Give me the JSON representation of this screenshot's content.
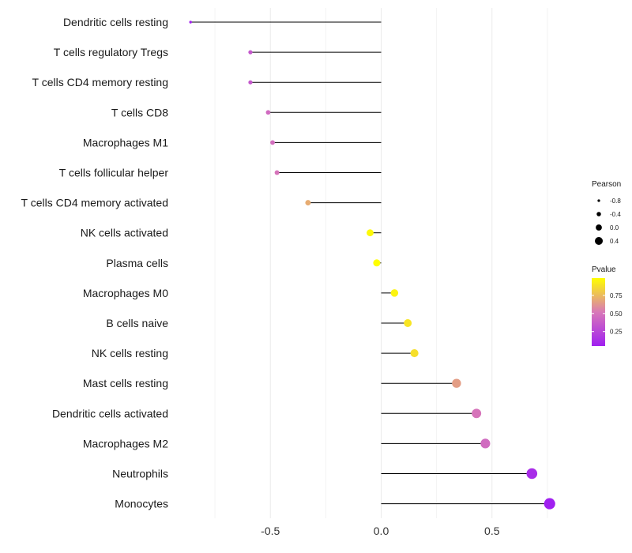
{
  "chart_data": {
    "type": "lollipop",
    "title": "",
    "xlabel": "",
    "ylabel": "",
    "xlim": [
      -0.9,
      0.9
    ],
    "x_ticks": [
      -0.5,
      0.0,
      0.5
    ],
    "x_tick_labels": [
      "-0.5",
      "0.0",
      "0.5"
    ],
    "grid": true,
    "baseline": 0,
    "categories": [
      "Dendritic cells resting",
      "T cells regulatory  Tregs",
      "T cells CD4 memory resting",
      "T cells CD8",
      "Macrophages M1",
      "T cells follicular helper",
      "T cells CD4 memory activated",
      "NK cells activated",
      "Plasma cells",
      "Macrophages M0",
      "B cells naive",
      "NK cells resting",
      "Mast cells resting",
      "Dendritic cells activated",
      "Macrophages M2",
      "Neutrophils",
      "Monocytes"
    ],
    "pearson": [
      -0.86,
      -0.59,
      -0.59,
      -0.51,
      -0.49,
      -0.47,
      -0.33,
      -0.05,
      -0.02,
      0.06,
      0.12,
      0.15,
      0.34,
      0.43,
      0.47,
      0.68,
      0.76
    ],
    "pvalue": [
      0.07,
      0.35,
      0.35,
      0.45,
      0.47,
      0.5,
      0.7,
      0.97,
      0.99,
      0.95,
      0.9,
      0.88,
      0.65,
      0.5,
      0.45,
      0.12,
      0.05
    ],
    "size_legend": {
      "title": "Pearson",
      "values": [
        -0.8,
        -0.4,
        0.0,
        0.4
      ],
      "labels": [
        "-0.8",
        "-0.4",
        "0.0",
        "0.4"
      ]
    },
    "color_legend": {
      "title": "Pvalue",
      "min": 0.05,
      "max": 0.99,
      "ticks": [
        0.25,
        0.5,
        0.75
      ],
      "tick_labels": [
        "0.25",
        "0.50",
        "0.75"
      ],
      "low_color": "#a020f0",
      "mid_color": "#d878b8",
      "high_color": "#ffff00"
    },
    "legend_position": "right"
  }
}
